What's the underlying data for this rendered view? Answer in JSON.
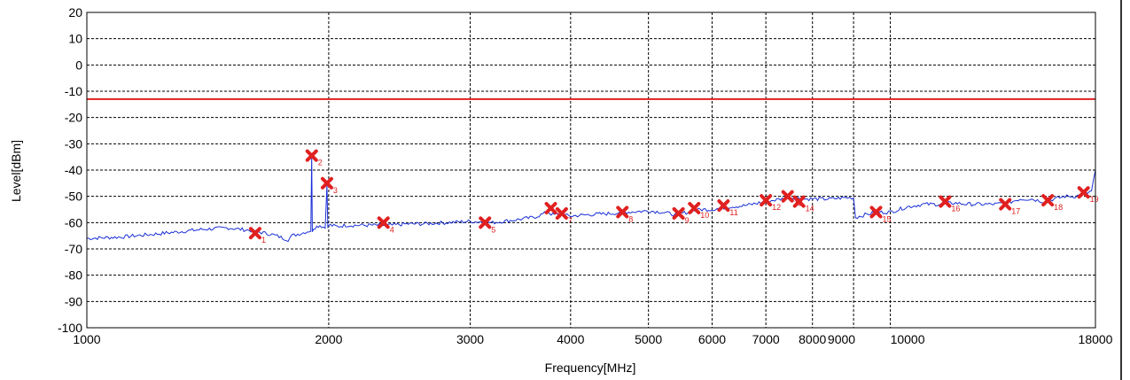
{
  "chart_data": {
    "type": "line",
    "title": "",
    "xlabel": "Frequency[MHz]",
    "ylabel": "Level[dBm]",
    "xscale": "log",
    "xlim": [
      1000,
      18000
    ],
    "ylim": [
      -100,
      20
    ],
    "x_ticks": [
      1000,
      2000,
      3000,
      4000,
      5000,
      6000,
      7000,
      8000,
      9000,
      10000,
      18000
    ],
    "x_tick_labels": [
      "1000",
      "2000",
      "3000",
      "4000",
      "5000",
      "6000",
      "7000",
      "8000",
      "9000",
      "10000",
      "18000"
    ],
    "y_ticks": [
      20,
      10,
      0,
      -10,
      -20,
      -30,
      -40,
      -50,
      -60,
      -70,
      -80,
      -90,
      -100
    ],
    "y_tick_labels": [
      "20",
      "10",
      "0",
      "-10",
      "-20",
      "-30",
      "-40",
      "-50",
      "-60",
      "-70",
      "-80",
      "-90",
      "-100"
    ],
    "grid": true,
    "colors": {
      "trace": "#1a2fd6",
      "limit": "#e02020",
      "marker": "#e02020",
      "grid": "#000000"
    },
    "limit_line": {
      "y": -13
    },
    "trace": {
      "x": [
        1000,
        1100,
        1200,
        1300,
        1400,
        1500,
        1600,
        1700,
        1780,
        1800,
        1850,
        1900,
        1905,
        1908,
        1915,
        1950,
        1980,
        1990,
        1995,
        2000,
        2010,
        2050,
        2100,
        2200,
        2300,
        2400,
        2500,
        2600,
        2800,
        3000,
        3200,
        3400,
        3600,
        3750,
        3800,
        3900,
        4000,
        4200,
        4500,
        4700,
        5000,
        5200,
        5400,
        5600,
        5800,
        6000,
        6300,
        6600,
        7000,
        7300,
        7600,
        7800,
        8000,
        8400,
        8800,
        9000,
        9050,
        9300,
        9600,
        10000,
        10500,
        11000,
        11500,
        12000,
        12500,
        13000,
        13500,
        14000,
        14500,
        15000,
        15500,
        16000,
        16500,
        17000,
        17500,
        17800,
        18000
      ],
      "y": [
        -66,
        -65.5,
        -64.5,
        -63.5,
        -62.5,
        -62,
        -63,
        -64.5,
        -66.5,
        -65,
        -64,
        -63,
        -35,
        -63,
        -62,
        -61,
        -62,
        -45,
        -62,
        -61,
        -61,
        -61.5,
        -61,
        -61,
        -61,
        -61,
        -60.5,
        -60.5,
        -60,
        -59.5,
        -60,
        -59,
        -58,
        -56,
        -57,
        -57,
        -57.5,
        -57,
        -56.5,
        -56,
        -55.5,
        -56,
        -57,
        -56,
        -55,
        -55,
        -54,
        -53.5,
        -52,
        -51,
        -50.5,
        -51,
        -51,
        -51,
        -50.5,
        -50.5,
        -58,
        -57,
        -56,
        -56,
        -54,
        -53,
        -53,
        -52.5,
        -53,
        -53,
        -53,
        -52.5,
        -51,
        -51,
        -52,
        -51,
        -50,
        -50,
        -49,
        -48,
        -40
      ]
    },
    "markers": [
      {
        "id": "1",
        "x": 1620,
        "y": -64
      },
      {
        "id": "2",
        "x": 1905,
        "y": -34.5
      },
      {
        "id": "3",
        "x": 1990,
        "y": -45
      },
      {
        "id": "4",
        "x": 2340,
        "y": -60
      },
      {
        "id": "5",
        "x": 3130,
        "y": -60
      },
      {
        "id": "6",
        "x": 3780,
        "y": -54.5
      },
      {
        "id": "7",
        "x": 3900,
        "y": -56.5
      },
      {
        "id": "8",
        "x": 4640,
        "y": -56
      },
      {
        "id": "9",
        "x": 5450,
        "y": -56.5
      },
      {
        "id": "10",
        "x": 5700,
        "y": -54.5
      },
      {
        "id": "11",
        "x": 6200,
        "y": -53.5
      },
      {
        "id": "12",
        "x": 7000,
        "y": -51.5
      },
      {
        "id": "13",
        "x": 7450,
        "y": -50
      },
      {
        "id": "14",
        "x": 7700,
        "y": -52
      },
      {
        "id": "15",
        "x": 9600,
        "y": -56
      },
      {
        "id": "16",
        "x": 11700,
        "y": -52
      },
      {
        "id": "17",
        "x": 13900,
        "y": -53
      },
      {
        "id": "18",
        "x": 15700,
        "y": -51.5
      },
      {
        "id": "19",
        "x": 17400,
        "y": -48.5
      }
    ]
  }
}
